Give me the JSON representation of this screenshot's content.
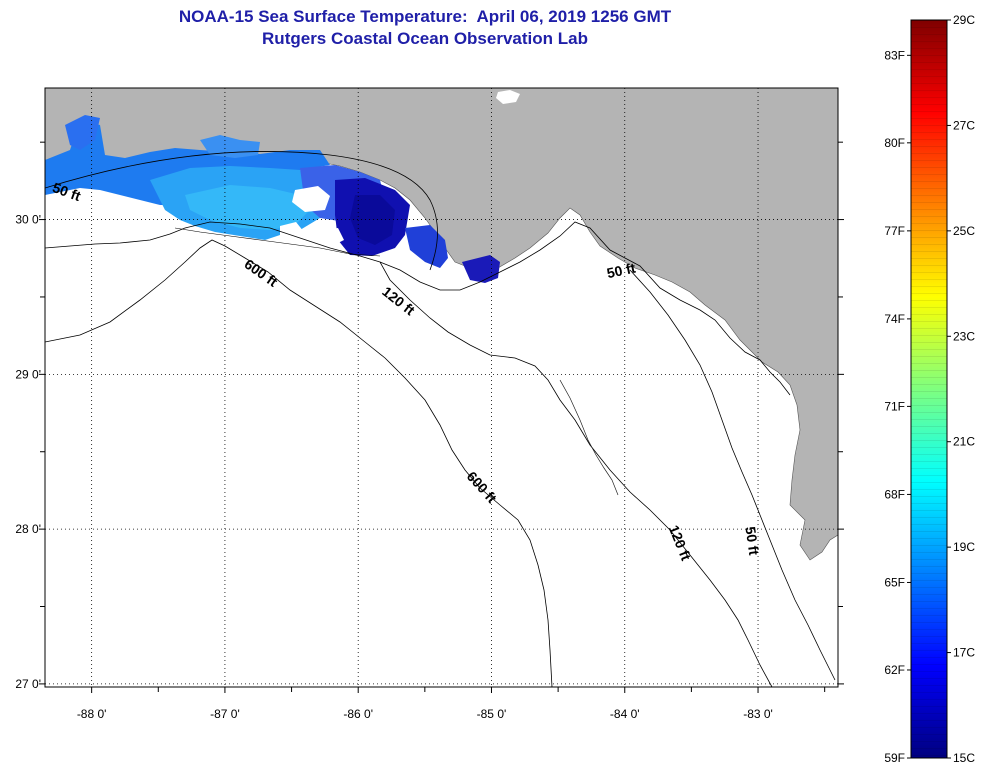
{
  "title": {
    "line1": "NOAA-15 Sea Surface Temperature:  April 06, 2019 1256 GMT",
    "line2": "Rutgers Coastal Ocean Observation Lab"
  },
  "map": {
    "lon_range": [
      -88.35,
      -82.4
    ],
    "lat_range": [
      26.98,
      30.85
    ],
    "lon_ticks": [
      {
        "value": -88,
        "label": "-88 0'"
      },
      {
        "value": -87,
        "label": "-87 0'"
      },
      {
        "value": -86,
        "label": "-86 0'"
      },
      {
        "value": -85,
        "label": "-85 0'"
      },
      {
        "value": -84,
        "label": "-84 0'"
      },
      {
        "value": -83,
        "label": "-83 0'"
      }
    ],
    "lat_ticks": [
      {
        "value": 30,
        "label": "30 0'"
      },
      {
        "value": 29,
        "label": "29 0'"
      },
      {
        "value": 28,
        "label": "28 0'"
      },
      {
        "value": 27,
        "label": "27 0'"
      }
    ],
    "grid": "dotted",
    "land_color": "#b4b4b4",
    "contour_labels": [
      {
        "text": "50 ft",
        "lon": -88.2,
        "lat": 30.15,
        "rotate": 20
      },
      {
        "text": "600 ft",
        "lon": -86.75,
        "lat": 29.63,
        "rotate": 35
      },
      {
        "text": "120 ft",
        "lon": -85.72,
        "lat": 29.45,
        "rotate": 38
      },
      {
        "text": "50 ft",
        "lon": -84.02,
        "lat": 29.64,
        "rotate": -12
      },
      {
        "text": "600 ft",
        "lon": -85.1,
        "lat": 28.25,
        "rotate": 48
      },
      {
        "text": "120 ft",
        "lon": -83.62,
        "lat": 27.9,
        "rotate": 68
      },
      {
        "text": "50 ft",
        "lon": -83.08,
        "lat": 27.92,
        "rotate": 82
      }
    ]
  },
  "colorbar": {
    "colors": [
      "#00007f",
      "#0000ff",
      "#007fff",
      "#00ffff",
      "#7fff7f",
      "#ffff00",
      "#ff7f00",
      "#ff0000",
      "#7f0000"
    ],
    "f_labels": [
      {
        "label": "59F",
        "value": 15
      },
      {
        "label": "62F",
        "value": 16.67
      },
      {
        "label": "65F",
        "value": 18.33
      },
      {
        "label": "68F",
        "value": 20
      },
      {
        "label": "71F",
        "value": 21.67
      },
      {
        "label": "74F",
        "value": 23.33
      },
      {
        "label": "77F",
        "value": 25
      },
      {
        "label": "80F",
        "value": 26.67
      },
      {
        "label": "83F",
        "value": 28.33
      }
    ],
    "c_labels": [
      {
        "label": "15C",
        "value": 15
      },
      {
        "label": "17C",
        "value": 17
      },
      {
        "label": "19C",
        "value": 19
      },
      {
        "label": "21C",
        "value": 21
      },
      {
        "label": "23C",
        "value": 23
      },
      {
        "label": "25C",
        "value": 25
      },
      {
        "label": "27C",
        "value": 27
      },
      {
        "label": "29C",
        "value": 29
      }
    ],
    "range_c": [
      15,
      29
    ]
  }
}
